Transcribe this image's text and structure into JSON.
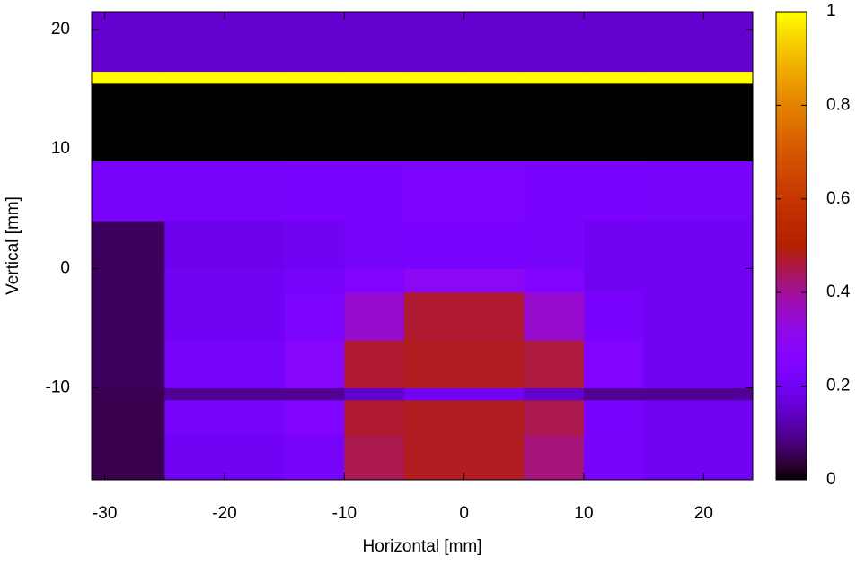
{
  "chart_data": {
    "type": "heatmap",
    "x_label": "Horizontal [mm]",
    "y_label": "Vertical [mm]",
    "xlim": [
      -31.1,
      24.1
    ],
    "ylim": [
      -17.7,
      21.5
    ],
    "xticks": [
      -30,
      -20,
      -10,
      0,
      10,
      20
    ],
    "yticks": [
      -10,
      0,
      10,
      20
    ],
    "clim": [
      0,
      1
    ],
    "cticks": [
      0,
      0.2,
      0.4,
      0.6,
      0.8,
      1
    ],
    "x_edges": [
      -31.1,
      -25,
      -15,
      -10,
      -5,
      0,
      5,
      10,
      15,
      24.1
    ],
    "y_edges": [
      -17.7,
      -14,
      -11,
      -10,
      -6,
      -2,
      0,
      4,
      9,
      15.5,
      16.5,
      21.5
    ],
    "z": [
      [
        0.05,
        0.2,
        0.22,
        0.45,
        0.48,
        0.48,
        0.42,
        0.22,
        0.2
      ],
      [
        0.05,
        0.22,
        0.25,
        0.47,
        0.48,
        0.48,
        0.45,
        0.23,
        0.2
      ],
      [
        0.05,
        0.1,
        0.1,
        0.15,
        0.2,
        0.2,
        0.15,
        0.1,
        0.1
      ],
      [
        0.06,
        0.22,
        0.27,
        0.47,
        0.48,
        0.48,
        0.46,
        0.25,
        0.2
      ],
      [
        0.06,
        0.2,
        0.24,
        0.35,
        0.47,
        0.47,
        0.35,
        0.23,
        0.2
      ],
      [
        0.06,
        0.2,
        0.22,
        0.25,
        0.3,
        0.3,
        0.25,
        0.2,
        0.2
      ],
      [
        0.06,
        0.19,
        0.2,
        0.22,
        0.23,
        0.23,
        0.22,
        0.2,
        0.2
      ],
      [
        0.22,
        0.22,
        0.23,
        0.23,
        0.24,
        0.24,
        0.23,
        0.23,
        0.22
      ],
      [
        0,
        0,
        0,
        0,
        0,
        0,
        0,
        0,
        0
      ],
      [
        1,
        1,
        1,
        1,
        1,
        1,
        1,
        1,
        1
      ],
      [
        0.15,
        0.15,
        0.15,
        0.15,
        0.15,
        0.15,
        0.15,
        0.15,
        0.15
      ]
    ]
  }
}
